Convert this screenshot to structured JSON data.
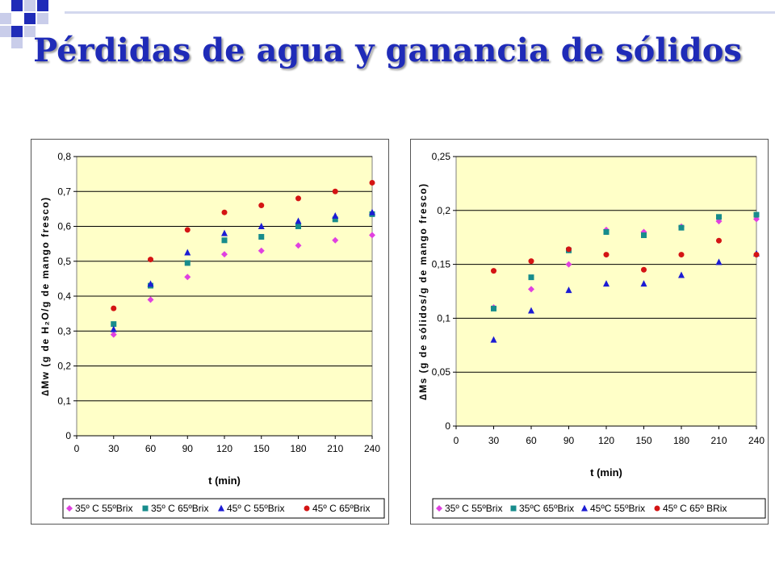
{
  "title": "Pérdidas de agua y ganancia de sólidos",
  "colors": {
    "title": "#1f2bb8",
    "plot_bg": "#ffffc8",
    "series": [
      "#e040e0",
      "#178c8c",
      "#1c1cd4",
      "#d41414"
    ]
  },
  "chart_data": [
    {
      "type": "scatter",
      "ylabel": "∆Mw (g de H₂O/g de mango fresco)",
      "xlabel": "t (min)",
      "x_ticks": [
        "0",
        "30",
        "60",
        "90",
        "120",
        "150",
        "180",
        "210",
        "240"
      ],
      "y_ticks": [
        "0",
        "0,1",
        "0,2",
        "0,3",
        "0,4",
        "0,5",
        "0,6",
        "0,7",
        "0,8"
      ],
      "xlim": [
        0,
        240
      ],
      "ylim": [
        0,
        0.8
      ],
      "grid": true,
      "legend_position": "bottom",
      "x": [
        30,
        60,
        90,
        120,
        150,
        180,
        210,
        240
      ],
      "series": [
        {
          "name": "35º C 55ºBrix",
          "marker": "diamond",
          "values": [
            0.29,
            0.39,
            0.455,
            0.52,
            0.53,
            0.545,
            0.56,
            0.575
          ]
        },
        {
          "name": "35º C 65ºBrix",
          "marker": "square",
          "values": [
            0.32,
            0.43,
            0.495,
            0.56,
            0.57,
            0.6,
            0.62,
            0.635
          ]
        },
        {
          "name": "45º C 55ºBrix",
          "marker": "triangle",
          "values": [
            0.305,
            0.435,
            0.525,
            0.58,
            0.6,
            0.615,
            0.63,
            0.64
          ]
        },
        {
          "name": "45º C 65ºBrix",
          "marker": "circle",
          "values": [
            0.365,
            0.505,
            0.59,
            0.64,
            0.66,
            0.68,
            0.7,
            0.725
          ]
        }
      ]
    },
    {
      "type": "scatter",
      "ylabel": "∆Ms (g de sólidos/g de mango fresco)",
      "xlabel": "t (min)",
      "x_ticks": [
        "0",
        "30",
        "60",
        "90",
        "120",
        "150",
        "180",
        "210",
        "240"
      ],
      "y_ticks": [
        "0",
        "0,05",
        "0,1",
        "0,15",
        "0,2",
        "0,25"
      ],
      "xlim": [
        0,
        240
      ],
      "ylim": [
        0,
        0.25
      ],
      "grid": true,
      "legend_position": "bottom",
      "x": [
        30,
        60,
        90,
        120,
        150,
        180,
        210,
        240
      ],
      "series": [
        {
          "name": "35º C 55ºBrix",
          "marker": "diamond",
          "values": [
            0.11,
            0.127,
            0.15,
            0.182,
            0.18,
            0.185,
            0.19,
            0.192
          ]
        },
        {
          "name": "35ºC 65ºBrix",
          "marker": "square",
          "values": [
            0.109,
            0.138,
            0.163,
            0.18,
            0.177,
            0.184,
            0.194,
            0.196
          ]
        },
        {
          "name": "45ºC 55ºBrix",
          "marker": "triangle",
          "values": [
            0.08,
            0.107,
            0.126,
            0.132,
            0.132,
            0.14,
            0.152,
            0.16
          ]
        },
        {
          "name": "45º C 65º BRix",
          "marker": "circle",
          "values": [
            0.144,
            0.153,
            0.164,
            0.159,
            0.145,
            0.159,
            0.172,
            0.159
          ]
        }
      ]
    }
  ]
}
